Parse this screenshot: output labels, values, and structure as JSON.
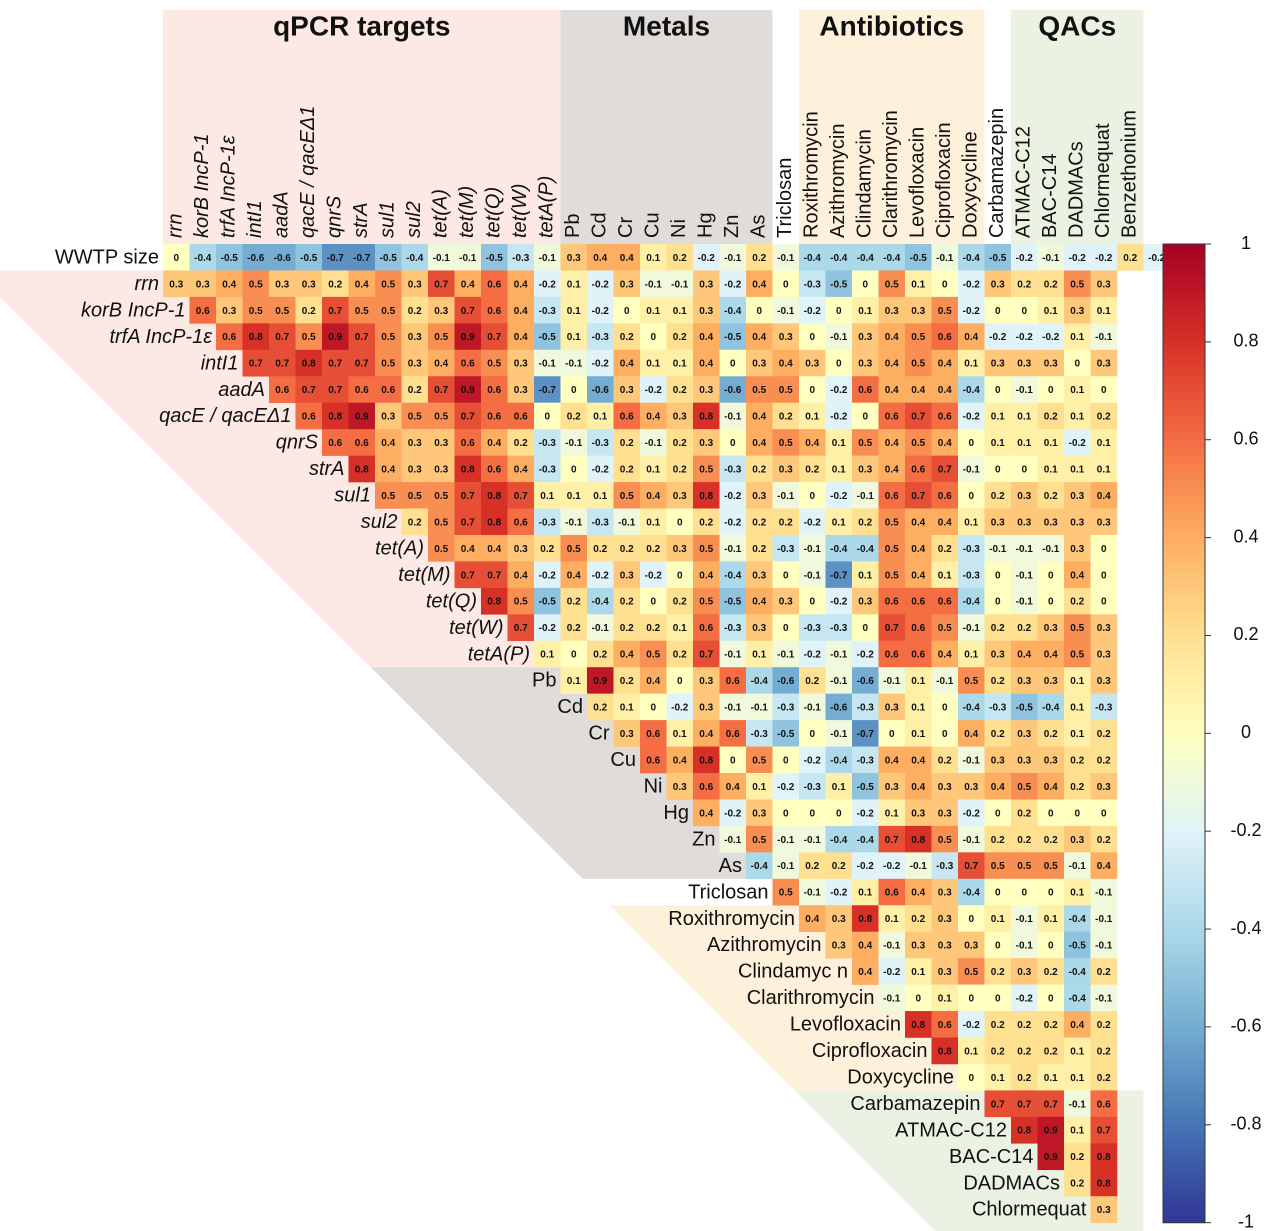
{
  "chart_data": {
    "type": "heatmap",
    "groups": [
      "qPCR targets",
      "Metals",
      "Antibiotics",
      "QACs"
    ],
    "columns": [
      "rrn",
      "korB IncP-1",
      "trfA IncP-1ε",
      "intI1",
      "aadA",
      "qacE / qacEΔ1",
      "qnrS",
      "strA",
      "sul1",
      "sul2",
      "tet(A)",
      "tet(M)",
      "tet(Q)",
      "tet(W)",
      "tetA(P)",
      "Pb",
      "Cd",
      "Cr",
      "Cu",
      "Ni",
      "Hg",
      "Zn",
      "As",
      "Triclosan",
      "Roxithromycin",
      "Azithromycin",
      "Clindamycin",
      "Clarithromycin",
      "Levofloxacin",
      "Ciprofloxacin",
      "Doxycycline",
      "Carbamazepin",
      "ATMAC-C12",
      "BAC-C14",
      "DADMACs",
      "Chlormequat",
      "Benzethonium"
    ],
    "rows": [
      "WWTP size",
      "rrn",
      "korB IncP-1",
      "trfA IncP-1ε",
      "intI1",
      "aadA",
      "qacE / qacEΔ1",
      "qnrS",
      "strA",
      "sul1",
      "sul2",
      "tet(A)",
      "tet(M)",
      "tet(Q)",
      "tet(W)",
      "tetA(P)",
      "Pb",
      "Cd",
      "Cr",
      "Cu",
      "Ni",
      "Hg",
      "Zn",
      "As",
      "Triclosan",
      "Roxithromycin",
      "Azithromycin",
      "Clindamyc n",
      "Clarithromycin",
      "Levofloxacin",
      "Ciprofloxacin",
      "Doxycycline",
      "Carbamazepin",
      "ATMAC-C12",
      "BAC-C14",
      "DADMACs",
      "Chlormequat"
    ],
    "values": [
      [
        0,
        -0.4,
        -0.5,
        -0.6,
        -0.6,
        -0.5,
        -0.7,
        -0.7,
        -0.5,
        -0.4,
        -0.1,
        -0.1,
        -0.5,
        -0.3,
        -0.1,
        0.3,
        0.4,
        0.4,
        0.1,
        0.2,
        -0.2,
        -0.1,
        0.2,
        -0.1,
        -0.4,
        -0.4,
        -0.4,
        -0.4,
        -0.5,
        -0.1,
        -0.4,
        -0.5,
        -0.2,
        -0.1,
        -0.2,
        -0.2,
        0.2,
        -0.2
      ],
      [
        0.3,
        0.3,
        0.4,
        0.5,
        0.3,
        0.3,
        0.2,
        0.4,
        0.5,
        0.3,
        0.7,
        0.4,
        0.6,
        0.4,
        -0.2,
        0.1,
        -0.2,
        0.3,
        -0.1,
        -0.1,
        0.3,
        -0.2,
        0.4,
        0,
        -0.3,
        -0.5,
        0,
        0.5,
        0.1,
        0,
        -0.2,
        0.3,
        0.2,
        0.2,
        0.5,
        0.3
      ],
      [
        0.6,
        0.3,
        0.5,
        0.5,
        0.2,
        0.7,
        0.5,
        0.5,
        0.2,
        0.3,
        0.7,
        0.6,
        0.4,
        -0.3,
        0.1,
        -0.2,
        0,
        0.1,
        0.1,
        0.3,
        -0.4,
        0,
        -0.1,
        -0.2,
        0,
        0.1,
        0.3,
        0.3,
        0.5,
        -0.2,
        0,
        0,
        0.1,
        0.3,
        0.1
      ],
      [
        0.6,
        0.8,
        0.7,
        0.5,
        0.9,
        0.7,
        0.5,
        0.3,
        0.5,
        0.9,
        0.7,
        0.4,
        -0.5,
        0.1,
        -0.3,
        0.2,
        0,
        0.2,
        0.4,
        -0.5,
        0.4,
        0.3,
        0,
        -0.1,
        0.3,
        0.4,
        0.5,
        0.6,
        0.4,
        -0.2,
        -0.2,
        -0.2,
        0.1,
        -0.1
      ],
      [
        0.7,
        0.7,
        0.8,
        0.7,
        0.7,
        0.5,
        0.3,
        0.4,
        0.6,
        0.5,
        0.3,
        -0.1,
        -0.1,
        -0.2,
        0.4,
        0.1,
        0.1,
        0.4,
        0,
        0.3,
        0.4,
        0.3,
        0,
        0.3,
        0.4,
        0.5,
        0.4,
        0.1,
        0.3,
        0.3,
        0.3,
        0,
        0.3
      ],
      [
        0.6,
        0.7,
        0.7,
        0.6,
        0.6,
        0.2,
        0.7,
        0.9,
        0.6,
        0.3,
        -0.7,
        0,
        -0.6,
        0.3,
        -0.2,
        0.2,
        0.3,
        -0.6,
        0.5,
        0.5,
        0,
        -0.2,
        0.6,
        0.4,
        0.4,
        0.4,
        -0.4,
        0,
        -0.1,
        0,
        0.1,
        0
      ],
      [
        0.6,
        0.8,
        0.9,
        0.3,
        0.5,
        0.5,
        0.7,
        0.6,
        0.6,
        0,
        0.2,
        0.1,
        0.6,
        0.4,
        0.3,
        0.8,
        -0.1,
        0.4,
        0.2,
        0.1,
        -0.2,
        0,
        0.6,
        0.7,
        0.6,
        -0.2,
        0.1,
        0.1,
        0.2,
        0.1,
        0.2
      ],
      [
        0.6,
        0.6,
        0.4,
        0.3,
        0.3,
        0.6,
        0.4,
        0.2,
        -0.3,
        -0.1,
        -0.3,
        0.2,
        -0.1,
        0.2,
        0.3,
        0,
        0.4,
        0.5,
        0.4,
        0.1,
        0.5,
        0.4,
        0.5,
        0.4,
        0,
        0.1,
        0.1,
        0.1,
        -0.2,
        0.1
      ],
      [
        0.8,
        0.4,
        0.3,
        0.3,
        0.8,
        0.6,
        0.4,
        -0.3,
        0,
        -0.2,
        0.2,
        0.1,
        0.2,
        0.5,
        -0.3,
        0.2,
        0.3,
        0.2,
        0.1,
        0.3,
        0.4,
        0.6,
        0.7,
        -0.1,
        0,
        0,
        0.1,
        0.1,
        0.1
      ],
      [
        0.5,
        0.5,
        0.5,
        0.7,
        0.8,
        0.7,
        0.1,
        0.1,
        0.1,
        0.5,
        0.4,
        0.3,
        0.8,
        -0.2,
        0.3,
        -0.1,
        0,
        -0.2,
        -0.1,
        0.6,
        0.7,
        0.6,
        0,
        0.2,
        0.3,
        0.2,
        0.3,
        0.4
      ],
      [
        0.2,
        0.5,
        0.7,
        0.8,
        0.6,
        -0.3,
        -0.1,
        -0.3,
        -0.1,
        0.1,
        0,
        0.2,
        -0.2,
        0.2,
        0.2,
        -0.2,
        0.1,
        0.2,
        0.5,
        0.4,
        0.4,
        0.1,
        0.3,
        0.3,
        0.3,
        0.3,
        0.3
      ],
      [
        0.5,
        0.4,
        0.4,
        0.3,
        0.2,
        0.5,
        0.2,
        0.2,
        0.2,
        0.3,
        0.5,
        -0.1,
        0.2,
        -0.3,
        -0.1,
        -0.4,
        -0.4,
        0.5,
        0.4,
        0.2,
        -0.3,
        -0.1,
        -0.1,
        -0.1,
        0.3,
        0
      ],
      [
        0.7,
        0.7,
        0.4,
        -0.2,
        0.4,
        -0.2,
        0.3,
        -0.2,
        0,
        0.4,
        -0.4,
        0.3,
        0,
        -0.1,
        -0.7,
        0.1,
        0.5,
        0.4,
        0.1,
        -0.3,
        0,
        -0.1,
        0,
        0.4,
        0
      ],
      [
        0.8,
        0.5,
        -0.5,
        0.2,
        -0.4,
        0.2,
        0,
        0.2,
        0.5,
        -0.5,
        0.4,
        0.3,
        0,
        -0.2,
        0.3,
        0.6,
        0.6,
        0.6,
        -0.4,
        0,
        -0.1,
        0,
        0.2,
        0
      ],
      [
        0.7,
        -0.2,
        0.2,
        -0.1,
        0.2,
        0.2,
        0.1,
        0.6,
        -0.3,
        0.3,
        0,
        -0.3,
        -0.3,
        0,
        0.7,
        0.6,
        0.5,
        -0.1,
        0.2,
        0.2,
        0.3,
        0.5,
        0.3
      ],
      [
        0.1,
        0,
        0.2,
        0.4,
        0.5,
        0.2,
        0.7,
        -0.1,
        0.1,
        -0.1,
        -0.2,
        -0.1,
        -0.2,
        0.6,
        0.6,
        0.4,
        0.1,
        0.3,
        0.4,
        0.4,
        0.5,
        0.3
      ],
      [
        0.1,
        0.9,
        0.2,
        0.4,
        0,
        0.3,
        0.6,
        -0.4,
        -0.6,
        0.2,
        -0.1,
        -0.6,
        -0.1,
        0.1,
        -0.1,
        0.5,
        0.2,
        0.3,
        0.3,
        0.1,
        0.3
      ],
      [
        0.2,
        0.1,
        0,
        -0.2,
        0.3,
        -0.1,
        -0.1,
        -0.3,
        -0.1,
        -0.6,
        -0.3,
        0.3,
        0.1,
        0,
        -0.4,
        -0.3,
        -0.5,
        -0.4,
        0.1,
        -0.3
      ],
      [
        0.3,
        0.6,
        0.1,
        0.4,
        0.6,
        -0.3,
        -0.5,
        0,
        -0.1,
        -0.7,
        0,
        0.1,
        0,
        0.4,
        0.2,
        0.3,
        0.2,
        0.1,
        0.2
      ],
      [
        0.6,
        0.4,
        0.8,
        0,
        0.5,
        0,
        -0.2,
        -0.4,
        -0.3,
        0.4,
        0.4,
        0.2,
        -0.1,
        0.3,
        0.3,
        0.3,
        0.2,
        0.2
      ],
      [
        0.3,
        0.6,
        0.4,
        0.1,
        -0.2,
        -0.3,
        0.1,
        -0.5,
        0.3,
        0.4,
        0.3,
        0.3,
        0.4,
        0.5,
        0.4,
        0.2,
        0.3
      ],
      [
        0.4,
        -0.2,
        0.3,
        0,
        0,
        0,
        -0.2,
        0.1,
        0.3,
        0.3,
        -0.2,
        0,
        0.2,
        0,
        0,
        0
      ],
      [
        -0.1,
        0.5,
        -0.1,
        -0.1,
        -0.4,
        -0.4,
        0.7,
        0.8,
        0.5,
        -0.1,
        0.2,
        0.2,
        0.2,
        0.3,
        0.2
      ],
      [
        -0.4,
        -0.1,
        0.2,
        0.2,
        -0.2,
        -0.2,
        -0.1,
        -0.3,
        0.7,
        0.5,
        0.5,
        0.5,
        -0.1,
        0.4
      ],
      [
        0.5,
        -0.1,
        -0.2,
        0.1,
        0.6,
        0.4,
        0.3,
        -0.4,
        0,
        0,
        0,
        0.1,
        -0.1
      ],
      [
        0.4,
        0.3,
        0.8,
        0.1,
        0.2,
        0.3,
        0,
        0.1,
        -0.1,
        0.1,
        -0.4,
        -0.1
      ],
      [
        0.3,
        0.4,
        -0.1,
        0.3,
        0.3,
        0.3,
        0,
        -0.1,
        0,
        -0.5,
        -0.1
      ],
      [
        0.4,
        -0.2,
        0.1,
        0.3,
        0.5,
        0.2,
        0.3,
        0.2,
        -0.4,
        0.2
      ],
      [
        -0.1,
        0,
        0.1,
        0,
        0,
        -0.2,
        0,
        -0.4,
        -0.1
      ],
      [
        0.8,
        0.6,
        -0.2,
        0.2,
        0.2,
        0.2,
        0.4,
        0.2
      ],
      [
        0.8,
        0.1,
        0.2,
        0.2,
        0.2,
        0.1,
        0.2
      ],
      [
        0,
        0.1,
        0.2,
        0.1,
        0.1,
        0.2
      ],
      [
        0.7,
        0.7,
        0.7,
        -0.1,
        0.6
      ],
      [
        0.8,
        0.9,
        0.1,
        0.7
      ],
      [
        0.9,
        0.2,
        0.8
      ],
      [
        0.2,
        0.8
      ],
      [
        0.3
      ]
    ],
    "colors": [
      "#313695",
      "#4575b4",
      "#74add1",
      "#abd9e9",
      "#e0f3f8",
      "#ffffbf",
      "#fee090",
      "#fdae61",
      "#f46d43",
      "#d73027",
      "#a50026"
    ],
    "clim": [
      -1,
      1
    ],
    "cticks": [
      1,
      0.8,
      0.6,
      0.4,
      0.2,
      0,
      -0.2,
      -0.4,
      -0.6,
      -0.8,
      -1
    ]
  }
}
